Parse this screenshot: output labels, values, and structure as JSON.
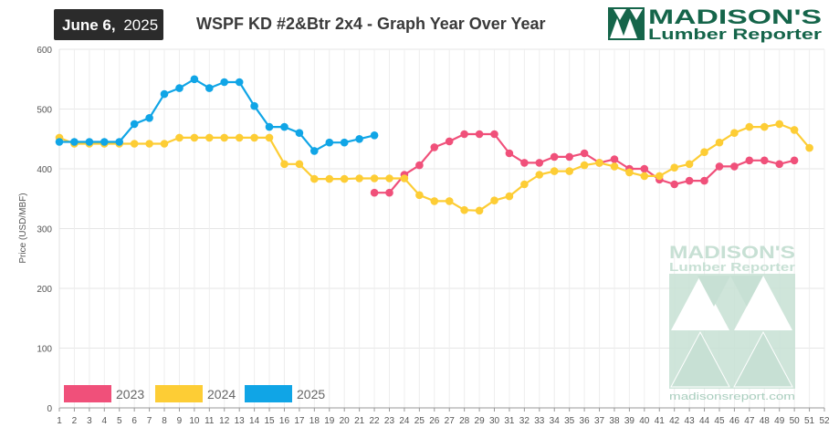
{
  "header": {
    "date_bold": "June 6,",
    "date_year": "2025",
    "title": "WSPF KD #2&Btr 2x4 - Graph Year Over Year"
  },
  "logo": {
    "line1": "MADISON'S",
    "line2": "Lumber Reporter"
  },
  "watermark": {
    "line1": "MADISON'S",
    "line2": "Lumber Reporter",
    "url": "madisonsreport.com"
  },
  "colors": {
    "series_2023": "#f0507a",
    "series_2024": "#fdcd35",
    "series_2025": "#10a5e6",
    "date_box_bg": "#2b2b2b",
    "logo_green": "#15654a",
    "watermark_green": "#c7e0d4"
  },
  "chart_data": {
    "type": "line",
    "title": "WSPF KD #2&Btr 2x4 - Graph Year Over Year",
    "xlabel": "",
    "ylabel": "Price (USD/MBF)",
    "xlim": [
      1,
      52
    ],
    "ylim": [
      0,
      600
    ],
    "x_ticks": [
      1,
      2,
      3,
      4,
      5,
      6,
      7,
      8,
      9,
      10,
      11,
      12,
      13,
      14,
      15,
      16,
      17,
      18,
      19,
      20,
      21,
      22,
      23,
      24,
      25,
      26,
      27,
      28,
      29,
      30,
      31,
      32,
      33,
      34,
      35,
      36,
      37,
      38,
      39,
      40,
      41,
      42,
      43,
      44,
      45,
      46,
      47,
      48,
      49,
      50,
      51,
      52
    ],
    "y_ticks": [
      0,
      100,
      200,
      300,
      400,
      500,
      600
    ],
    "grid": true,
    "legend_position": "bottom-left",
    "series": [
      {
        "name": "2023",
        "x": [
          22,
          23,
          24,
          25,
          26,
          27,
          28,
          29,
          30,
          31,
          32,
          33,
          34,
          35,
          36,
          37,
          38,
          39,
          40,
          41,
          42,
          43,
          44,
          45,
          46,
          47,
          48,
          49,
          50
        ],
        "values": [
          360,
          360,
          390,
          406,
          436,
          446,
          458,
          458,
          458,
          426,
          410,
          410,
          420,
          420,
          426,
          410,
          416,
          400,
          400,
          382,
          374,
          380,
          380,
          404,
          404,
          414,
          414,
          408,
          414
        ]
      },
      {
        "name": "2024",
        "x": [
          1,
          2,
          3,
          4,
          5,
          6,
          7,
          8,
          9,
          10,
          11,
          12,
          13,
          14,
          15,
          16,
          17,
          18,
          19,
          20,
          21,
          22,
          23,
          24,
          25,
          26,
          27,
          28,
          29,
          30,
          31,
          32,
          33,
          34,
          35,
          36,
          37,
          38,
          39,
          40,
          41,
          42,
          43,
          44,
          45,
          46,
          47,
          48,
          49,
          50,
          51
        ],
        "values": [
          452,
          442,
          442,
          442,
          442,
          442,
          442,
          442,
          452,
          452,
          452,
          452,
          452,
          452,
          452,
          408,
          408,
          383,
          383,
          383,
          384,
          384,
          384,
          384,
          356,
          346,
          346,
          331,
          330,
          347,
          354,
          374,
          390,
          396,
          396,
          406,
          410,
          404,
          394,
          388,
          388,
          402,
          408,
          428,
          444,
          460,
          470,
          470,
          475,
          465,
          435
        ]
      },
      {
        "name": "2025",
        "x": [
          1,
          2,
          3,
          4,
          5,
          6,
          7,
          8,
          9,
          10,
          11,
          12,
          13,
          14,
          15,
          16,
          17,
          18,
          19,
          20,
          21,
          22
        ],
        "values": [
          445,
          445,
          445,
          445,
          445,
          475,
          485,
          525,
          535,
          550,
          535,
          545,
          545,
          505,
          470,
          470,
          460,
          430,
          444,
          444,
          450,
          456
        ]
      }
    ]
  }
}
